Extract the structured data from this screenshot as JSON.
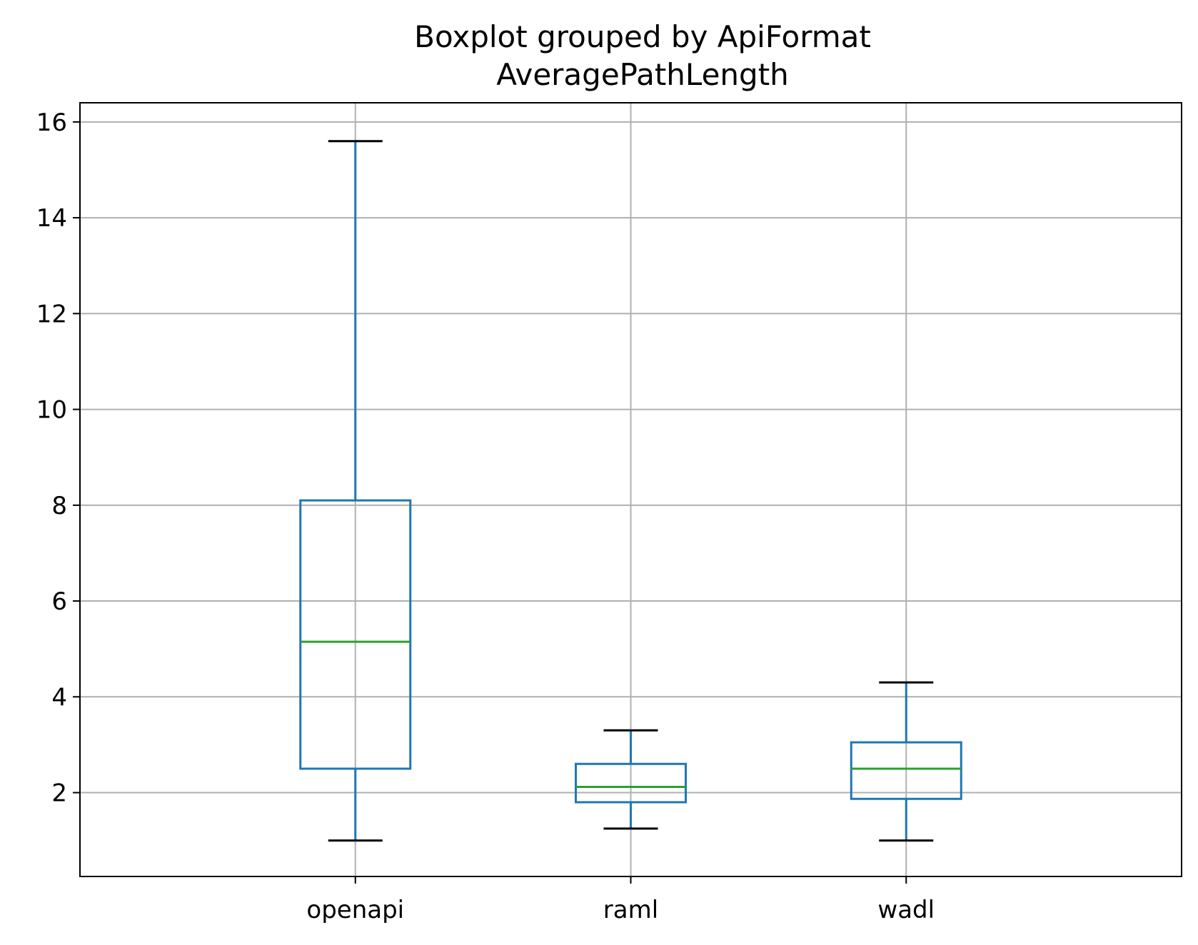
{
  "chart_data": {
    "type": "boxplot",
    "title": "Boxplot grouped by ApiFormat",
    "subtitle": "AveragePathLength",
    "xlabel": "",
    "ylabel": "",
    "ylim": [
      0.25,
      16.4
    ],
    "y_ticks": [
      2,
      4,
      6,
      8,
      10,
      12,
      14,
      16
    ],
    "grid": true,
    "categories": [
      "openapi",
      "raml",
      "wadl"
    ],
    "boxes": [
      {
        "category": "openapi",
        "whisker_low": 1.0,
        "q1": 2.5,
        "median": 5.15,
        "q3": 8.1,
        "whisker_high": 15.6
      },
      {
        "category": "raml",
        "whisker_low": 1.25,
        "q1": 1.8,
        "median": 2.12,
        "q3": 2.6,
        "whisker_high": 3.3
      },
      {
        "category": "wadl",
        "whisker_low": 1.0,
        "q1": 1.87,
        "median": 2.5,
        "q3": 3.05,
        "whisker_high": 4.3
      }
    ],
    "colors": {
      "box": "#1f77b4",
      "median": "#2ca02c",
      "caps": "#000000",
      "grid": "#b0b0b0"
    }
  }
}
